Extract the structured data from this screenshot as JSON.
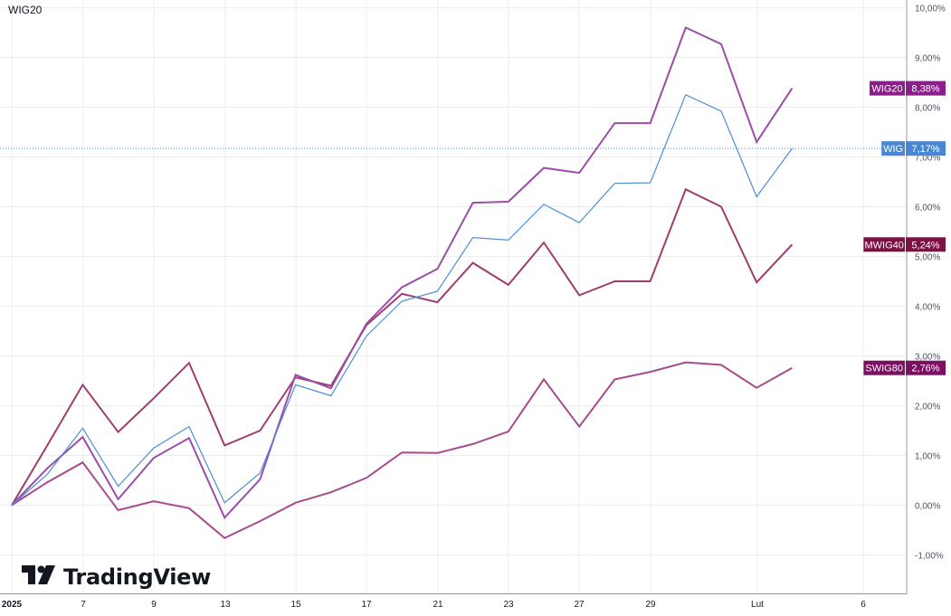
{
  "symbol_title": "WIG20",
  "watermark": {
    "brand": "TradingView",
    "icon": "tradingview-logo"
  },
  "colors": {
    "WIG20": "#9B4DA8",
    "WIG": "#4B8FD6",
    "MWIG40": "#9E3E6E",
    "SWIG80": "#A64C8C",
    "WIG_label": "#4A86D1",
    "WIG20_label": "#8A1F8A",
    "MWIG40_label": "#7D1143",
    "SWIG80_label": "#7A1060"
  },
  "chart_data": {
    "type": "line",
    "title": "WIG20",
    "y_unit": "%",
    "ylim": [
      -1.5,
      10.15
    ],
    "y_ticks": [
      "10,00%",
      "9,00%",
      "8,00%",
      "7,00%",
      "6,00%",
      "5,00%",
      "4,00%",
      "3,00%",
      "2,00%",
      "1,00%",
      "0,00%",
      "-1,00%"
    ],
    "x_tick_labels": [
      "2025",
      "7",
      "9",
      "13",
      "15",
      "17",
      "21",
      "23",
      "27",
      "29",
      "Lut",
      "6"
    ],
    "x": [
      "2025-01-02",
      "2025-01-03",
      "2025-01-07",
      "2025-01-08",
      "2025-01-09",
      "2025-01-10",
      "2025-01-13",
      "2025-01-14",
      "2025-01-15",
      "2025-01-16",
      "2025-01-17",
      "2025-01-20",
      "2025-01-21",
      "2025-01-22",
      "2025-01-23",
      "2025-01-24",
      "2025-01-27",
      "2025-01-28",
      "2025-01-29",
      "2025-01-30",
      "2025-01-31",
      "2025-02-03",
      "2025-02-04"
    ],
    "series": [
      {
        "name": "WIG20",
        "last_label": "8,38%",
        "values": [
          0.0,
          0.74,
          1.37,
          0.12,
          0.95,
          1.35,
          -0.25,
          0.52,
          2.62,
          2.35,
          3.65,
          4.38,
          4.75,
          6.08,
          6.1,
          6.78,
          6.68,
          7.68,
          7.68,
          9.6,
          9.27,
          7.3,
          8.38
        ]
      },
      {
        "name": "WIG",
        "last_label": "7,17%",
        "values": [
          0.0,
          0.62,
          1.55,
          0.38,
          1.15,
          1.58,
          0.05,
          0.65,
          2.42,
          2.2,
          3.4,
          4.1,
          4.3,
          5.38,
          5.33,
          6.05,
          5.68,
          6.47,
          6.48,
          8.25,
          7.92,
          6.2,
          7.17
        ]
      },
      {
        "name": "MWIG40",
        "last_label": "5,24%",
        "values": [
          0.0,
          1.2,
          2.42,
          1.47,
          2.15,
          2.86,
          1.2,
          1.5,
          2.57,
          2.4,
          3.62,
          4.25,
          4.08,
          4.87,
          4.43,
          5.28,
          4.22,
          4.5,
          4.5,
          6.35,
          6.0,
          4.48,
          5.24
        ]
      },
      {
        "name": "SWIG80",
        "last_label": "2,76%",
        "values": [
          0.0,
          0.46,
          0.86,
          -0.1,
          0.08,
          -0.06,
          -0.66,
          -0.32,
          0.05,
          0.26,
          0.55,
          1.06,
          1.05,
          1.23,
          1.48,
          2.53,
          1.58,
          2.53,
          2.68,
          2.87,
          2.82,
          2.36,
          2.76
        ]
      }
    ],
    "grid": true,
    "reference_line": {
      "series": "WIG",
      "value": 7.17
    }
  }
}
